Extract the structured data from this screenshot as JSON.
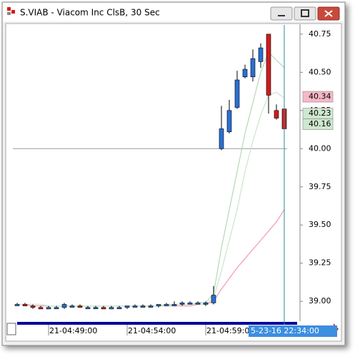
{
  "window": {
    "title": "S.VIAB - Viacom Inc ClsB, 30 Sec"
  },
  "chart_data": {
    "type": "candlestick",
    "categories": [
      null,
      null,
      null,
      null,
      "21-04:49:00",
      null,
      null,
      null,
      null,
      null,
      null,
      null,
      null,
      null,
      "21-04:54:00",
      null,
      null,
      null,
      null,
      null,
      null,
      null,
      null,
      null,
      "21-04:59:00",
      null,
      null,
      null,
      null,
      null,
      null,
      null,
      null,
      null,
      null
    ],
    "open": [
      38.98,
      38.98,
      38.97,
      38.96,
      38.95,
      38.96,
      38.96,
      38.97,
      38.97,
      38.96,
      38.96,
      38.96,
      38.95,
      38.96,
      38.96,
      38.97,
      38.97,
      38.97,
      38.97,
      38.98,
      38.98,
      38.98,
      38.99,
      38.99,
      38.98,
      38.99,
      40.0,
      40.11,
      40.27,
      40.47,
      40.47,
      40.57,
      40.75,
      40.25,
      40.26
    ],
    "high": [
      38.99,
      38.99,
      38.98,
      38.97,
      38.97,
      38.97,
      38.99,
      38.98,
      38.98,
      38.97,
      38.97,
      38.97,
      38.97,
      38.97,
      38.97,
      38.98,
      38.98,
      38.98,
      38.98,
      38.99,
      39.0,
      39.0,
      39.0,
      39.0,
      39.0,
      39.1,
      40.28,
      40.32,
      40.51,
      40.55,
      40.65,
      40.69,
      40.75,
      40.29,
      40.28
    ],
    "low": [
      38.97,
      38.97,
      38.95,
      38.95,
      38.95,
      38.95,
      38.95,
      38.96,
      38.96,
      38.95,
      38.95,
      38.95,
      38.95,
      38.95,
      38.95,
      38.96,
      38.96,
      38.96,
      38.96,
      38.97,
      38.97,
      38.97,
      38.98,
      38.98,
      38.97,
      38.98,
      39.99,
      40.1,
      40.26,
      40.46,
      40.44,
      40.53,
      40.23,
      40.19,
      40.12
    ],
    "close": [
      38.98,
      38.97,
      38.96,
      38.95,
      38.96,
      38.96,
      38.98,
      38.97,
      38.96,
      38.96,
      38.96,
      38.95,
      38.96,
      38.96,
      38.97,
      38.97,
      38.97,
      38.97,
      38.98,
      38.98,
      38.98,
      38.99,
      38.99,
      38.99,
      38.99,
      39.04,
      40.13,
      40.25,
      40.45,
      40.52,
      40.59,
      40.66,
      40.35,
      40.2,
      40.13
    ],
    "up_color": "#2a6fd6",
    "down_color": "#d01c1c",
    "series": [
      {
        "color": "#f4a0b4",
        "values": [
          38.98,
          38.98,
          38.97,
          38.97,
          38.97,
          38.97,
          38.97,
          38.97,
          38.97,
          38.97,
          38.97,
          38.97,
          38.97,
          38.97,
          38.97,
          38.97,
          38.97,
          38.97,
          38.97,
          38.97,
          38.97,
          38.97,
          38.97,
          38.98,
          38.98,
          39.0,
          39.08,
          39.15,
          39.22,
          39.28,
          39.34,
          39.4,
          39.46,
          39.52,
          39.6
        ]
      },
      {
        "color": "#b8dcb8",
        "values": [
          38.98,
          38.98,
          38.98,
          38.98,
          38.97,
          38.97,
          38.97,
          38.97,
          38.97,
          38.97,
          38.97,
          38.97,
          38.97,
          38.97,
          38.97,
          38.97,
          38.97,
          38.97,
          38.97,
          38.98,
          38.98,
          38.98,
          38.98,
          38.99,
          38.99,
          39.05,
          39.35,
          39.6,
          39.85,
          40.1,
          40.3,
          40.5,
          40.63,
          40.58,
          40.53
        ]
      },
      {
        "color": "#cfe6cf",
        "values": [
          38.98,
          38.98,
          38.98,
          38.98,
          38.97,
          38.97,
          38.97,
          38.97,
          38.97,
          38.97,
          38.97,
          38.97,
          38.97,
          38.97,
          38.97,
          38.97,
          38.97,
          38.97,
          38.97,
          38.97,
          38.98,
          38.98,
          38.98,
          38.98,
          38.98,
          39.02,
          39.2,
          39.4,
          39.6,
          39.85,
          40.05,
          40.22,
          40.35,
          40.37,
          40.33
        ]
      }
    ],
    "ylim": [
      38.87,
      40.81
    ],
    "yticks": [
      {
        "value": 39,
        "label": "39.00"
      },
      39.25,
      {
        "value": 39.5,
        "label": "39.50"
      },
      39.75,
      {
        "value": 40,
        "label": "40.00"
      },
      40.25,
      {
        "value": 40.5,
        "label": "40.50"
      },
      40.75
    ],
    "price_labels": [
      {
        "value": 40.34,
        "label": "40.34",
        "color": "#f6b8c8"
      },
      {
        "value": 40.23,
        "label": "40.23",
        "color": "#cfe8cf"
      },
      {
        "value": 40.16,
        "label": "40.16",
        "color": "#cfe8cf"
      }
    ],
    "reference_line": 40,
    "cursor_index": 34,
    "cursor_label": "5-23-16 22:34:00"
  }
}
